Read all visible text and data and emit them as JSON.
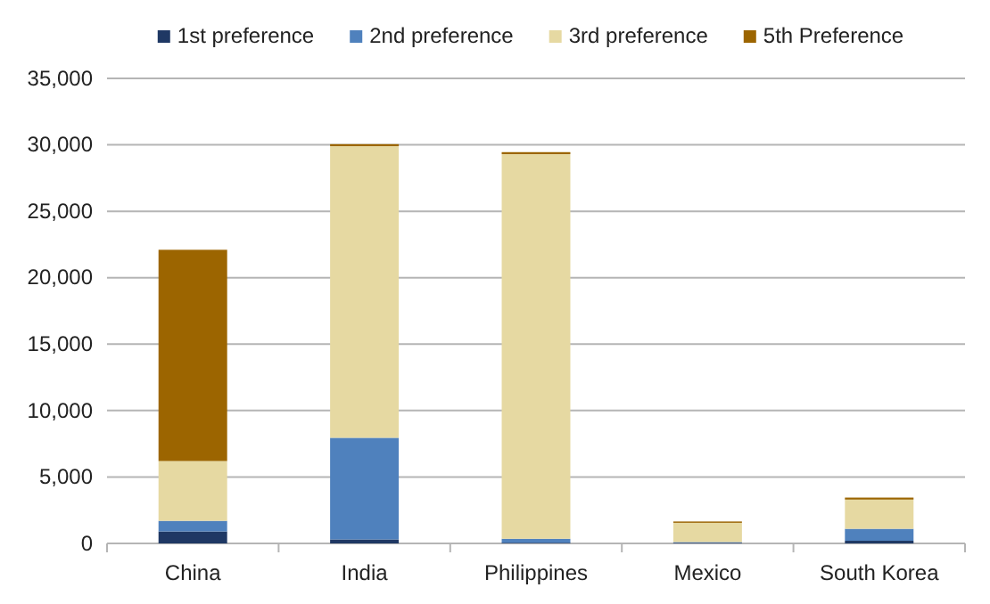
{
  "chart_data": {
    "type": "bar",
    "stacked": true,
    "categories": [
      "China",
      "India",
      "Philippines",
      "Mexico",
      "South Korea"
    ],
    "series": [
      {
        "name": "1st preference",
        "color": "#1f3864",
        "values": [
          900,
          300,
          50,
          50,
          200
        ]
      },
      {
        "name": "2nd preference",
        "color": "#4f81bd",
        "values": [
          800,
          7650,
          300,
          50,
          900
        ]
      },
      {
        "name": "3rd preference",
        "color": "#e6d9a2",
        "values": [
          4500,
          21950,
          28950,
          1450,
          2200
        ]
      },
      {
        "name": "5th Preference",
        "color": "#9c6500",
        "values": [
          15900,
          150,
          150,
          100,
          150
        ]
      }
    ],
    "ylim": [
      0,
      35000
    ],
    "yticks": [
      {
        "value": 0,
        "label": "0"
      },
      {
        "value": 5000,
        "label": "5,000"
      },
      {
        "value": 10000,
        "label": "10,000"
      },
      {
        "value": 15000,
        "label": "15,000"
      },
      {
        "value": 20000,
        "label": "20,000"
      },
      {
        "value": 25000,
        "label": "25,000"
      },
      {
        "value": 30000,
        "label": "30,000"
      },
      {
        "value": 35000,
        "label": "35,000"
      }
    ],
    "grid": "y",
    "legend": "top"
  }
}
